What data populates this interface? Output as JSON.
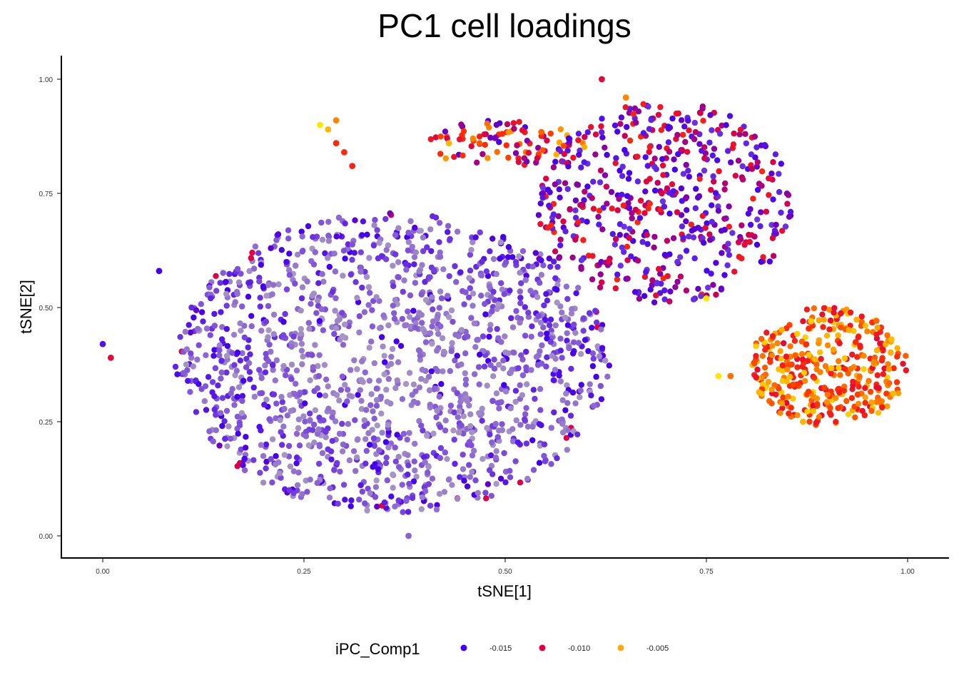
{
  "chart_data": {
    "type": "scatter",
    "title": "PC1 cell loadings",
    "xlabel": "tSNE[1]",
    "ylabel": "tSNE[2]",
    "xlim": [
      -0.05,
      1.05
    ],
    "ylim": [
      -0.05,
      1.05
    ],
    "x_ticks": [
      0.0,
      0.25,
      0.5,
      0.75,
      1.0
    ],
    "x_tick_labels": [
      "0.00",
      "0.25",
      "0.50",
      "0.75",
      "1.00"
    ],
    "y_ticks": [
      0.0,
      0.25,
      0.5,
      0.75,
      1.0
    ],
    "y_tick_labels": [
      "0.00",
      "0.25",
      "0.50",
      "0.75",
      "1.00"
    ],
    "grid": false,
    "legend": {
      "title": "iPC_Comp1",
      "placement": "bottom",
      "entries": [
        {
          "label": "-0.015",
          "color": "#4400ee"
        },
        {
          "label": "-0.010",
          "color": "#dd0044"
        },
        {
          "label": "-0.005",
          "color": "#ffaa11"
        }
      ]
    },
    "color_scale": {
      "stops": [
        {
          "value": 0.0,
          "color": "#a898c2"
        },
        {
          "value": 0.3,
          "color": "#7a48dc"
        },
        {
          "value": 0.5,
          "color": "#4400ee"
        },
        {
          "value": 0.7,
          "color": "#dd0044"
        },
        {
          "value": 0.82,
          "color": "#ff3300"
        },
        {
          "value": 0.92,
          "color": "#ff9900"
        },
        {
          "value": 1.0,
          "color": "#ffe600"
        }
      ]
    },
    "clusters": [
      {
        "name": "main",
        "cx": 0.36,
        "cy": 0.38,
        "rx": 0.27,
        "ry": 0.33,
        "n": 1500,
        "c": [
          0.0,
          0.45
        ]
      },
      {
        "name": "upper-right",
        "cx": 0.7,
        "cy": 0.73,
        "rx": 0.16,
        "ry": 0.22,
        "n": 520,
        "c": [
          0.35,
          0.8
        ]
      },
      {
        "name": "right-red",
        "cx": 0.9,
        "cy": 0.37,
        "rx": 0.1,
        "ry": 0.13,
        "n": 380,
        "c": [
          0.72,
          0.98
        ]
      },
      {
        "name": "arm-upper",
        "cx": 0.5,
        "cy": 0.86,
        "rx": 0.1,
        "ry": 0.05,
        "n": 90,
        "c": [
          0.5,
          0.95
        ]
      }
    ],
    "points": [
      {
        "x": 0.27,
        "y": 0.9,
        "c": 1.0
      },
      {
        "x": 0.28,
        "y": 0.89,
        "c": 0.95
      },
      {
        "x": 0.29,
        "y": 0.86,
        "c": 0.8
      },
      {
        "x": 0.3,
        "y": 0.84,
        "c": 0.8
      },
      {
        "x": 0.31,
        "y": 0.81,
        "c": 0.78
      },
      {
        "x": 0.29,
        "y": 0.91,
        "c": 0.9
      },
      {
        "x": 0.43,
        "y": 0.86,
        "c": 0.95
      },
      {
        "x": 0.46,
        "y": 0.87,
        "c": 0.9
      },
      {
        "x": 0.62,
        "y": 1.0,
        "c": 0.72
      },
      {
        "x": 0.65,
        "y": 0.96,
        "c": 0.9
      },
      {
        "x": 0.75,
        "y": 0.52,
        "c": 1.0
      },
      {
        "x": 0.765,
        "y": 0.35,
        "c": 1.0
      },
      {
        "x": 0.78,
        "y": 0.35,
        "c": 0.88
      },
      {
        "x": 0.88,
        "y": 0.47,
        "c": 0.98
      },
      {
        "x": 0.98,
        "y": 0.43,
        "c": 0.96
      },
      {
        "x": 0.87,
        "y": 0.25,
        "c": 0.95
      },
      {
        "x": 0.01,
        "y": 0.39,
        "c": 0.72
      },
      {
        "x": 0.0,
        "y": 0.42,
        "c": 0.45
      },
      {
        "x": 0.38,
        "y": 0.0,
        "c": 0.2
      },
      {
        "x": 0.07,
        "y": 0.58,
        "c": 0.5
      }
    ]
  }
}
